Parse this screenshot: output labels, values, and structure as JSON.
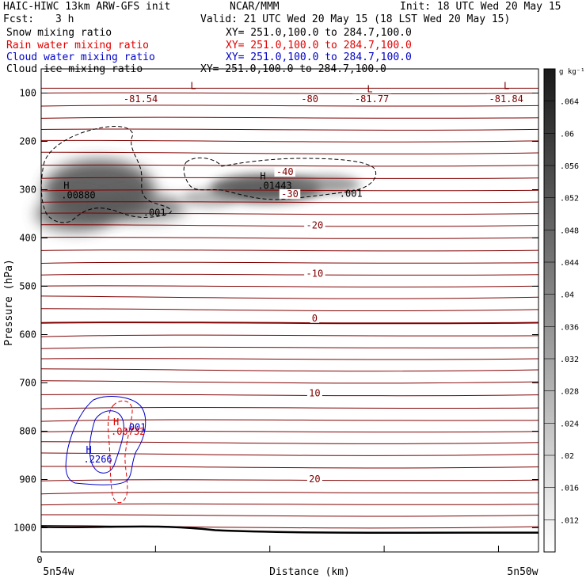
{
  "header": {
    "title": "HAIC-HIWC 13km ARW-GFS init",
    "org": "NCAR/MMM",
    "init": "Init: 18 UTC Wed 20 May 15",
    "fcst_label": "Fcst:",
    "fcst_value": "3 h",
    "valid": "Valid: 21 UTC Wed 20 May 15 (18 LST Wed 20 May 15)"
  },
  "fields": [
    {
      "name": "Snow mixing ratio",
      "xy": "XY= 251.0,100.0 to 284.7,100.0",
      "color": "#000000"
    },
    {
      "name": "Rain water mixing ratio",
      "xy": "XY= 251.0,100.0 to 284.7,100.0",
      "color": "#e00000"
    },
    {
      "name": "Cloud water mixing ratio",
      "xy": "XY= 251.0,100.0 to 284.7,100.0",
      "color": "#0000c8"
    },
    {
      "name": "Cloud ice mixing ratio",
      "xy": "XY= 251.0,100.0 to 284.7,100.0",
      "color": "#000000"
    }
  ],
  "chart_data": {
    "type": "contour-cross-section",
    "xlabel": "Distance (km)",
    "ylabel": "Pressure (hPa)",
    "x_start_label": "5n54w",
    "x_end_label": "5n50w",
    "x_zero_label": "0",
    "y_ticks": [
      100,
      200,
      300,
      400,
      500,
      600,
      700,
      800,
      900,
      1000
    ],
    "ylim": [
      50,
      1050
    ],
    "colorbar": {
      "units": "g kg⁻¹",
      "labels": [
        ".064",
        ".06",
        ".056",
        ".052",
        ".048",
        ".044",
        ".04",
        ".036",
        ".032",
        ".028",
        ".024",
        ".02",
        ".016",
        ".012"
      ],
      "min": 0.008,
      "max": 0.068
    },
    "temperature_labels": [
      {
        "text": "-81.54",
        "x": 0.2,
        "p": 112
      },
      {
        "text": "-80",
        "x": 0.54,
        "p": 112
      },
      {
        "text": "-81.77",
        "x": 0.665,
        "p": 112
      },
      {
        "text": "-81.84",
        "x": 0.935,
        "p": 112
      },
      {
        "text": "-40",
        "x": 0.49,
        "p": 263
      },
      {
        "text": "-30",
        "x": 0.5,
        "p": 309
      },
      {
        "text": "-20",
        "x": 0.55,
        "p": 374
      },
      {
        "text": "-10",
        "x": 0.55,
        "p": 474
      },
      {
        "text": "0",
        "x": 0.55,
        "p": 566
      },
      {
        "text": "10",
        "x": 0.55,
        "p": 721
      },
      {
        "text": "20",
        "x": 0.55,
        "p": 899
      }
    ],
    "extrema_labels": [
      {
        "mark": "L",
        "text": "",
        "x": 0.3,
        "p": 92,
        "color": "#800000"
      },
      {
        "mark": "L",
        "text": "",
        "x": 0.655,
        "p": 98,
        "color": "#800000"
      },
      {
        "mark": "L",
        "text": "",
        "x": 0.93,
        "p": 92,
        "color": "#800000"
      },
      {
        "mark": "H",
        "text": ".00880",
        "x": 0.045,
        "p": 298,
        "color": "#000000"
      },
      {
        "mark": "H",
        "text": ".01443",
        "x": 0.44,
        "p": 279,
        "color": "#000000"
      },
      {
        "mark": "H",
        "text": ".00732",
        "x": 0.145,
        "p": 788,
        "color": "#e00000"
      },
      {
        "mark": "H",
        "text": ".2266",
        "x": 0.09,
        "p": 845,
        "color": "#0000c8"
      }
    ],
    "contour_labels": [
      {
        "text": ".001",
        "x": 0.205,
        "p": 354,
        "color": "#000000"
      },
      {
        "text": ".001",
        "x": 0.6,
        "p": 315,
        "color": "#000000"
      },
      {
        "text": ".001",
        "x": 0.165,
        "p": 798,
        "color": "#0000c8"
      }
    ]
  }
}
